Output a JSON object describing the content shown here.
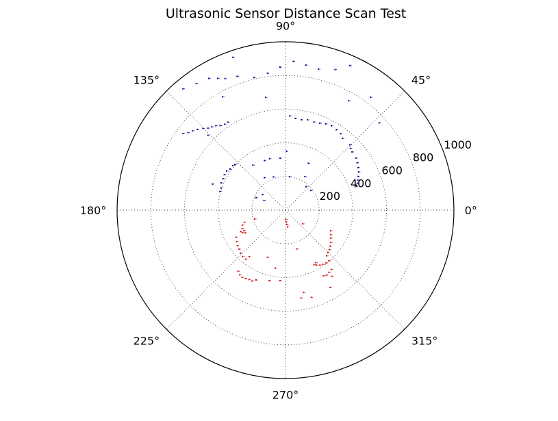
{
  "chart_data": {
    "type": "scatter",
    "projection": "polar",
    "title": "Ultrasonic Sensor Distance Scan Test",
    "theta_ticks": [
      "0°",
      "45°",
      "90°",
      "135°",
      "180°",
      "225°",
      "270°",
      "315°"
    ],
    "theta_tick_values_deg": [
      0,
      45,
      90,
      135,
      180,
      225,
      270,
      315
    ],
    "r_ticks": [
      "200",
      "400",
      "600",
      "800",
      "1000"
    ],
    "r_tick_values": [
      200,
      400,
      600,
      800,
      1000
    ],
    "rlim": [
      0,
      1000
    ],
    "grid": true,
    "series": [
      {
        "color": "#00008b",
        "points": [
          [
            130.2,
            943
          ],
          [
            125.2,
            920
          ],
          [
            120.2,
            905
          ],
          [
            117.2,
            880
          ],
          [
            114.7,
            860
          ],
          [
            109.9,
            845
          ],
          [
            103.4,
            810
          ],
          [
            97.5,
            820
          ],
          [
            92.2,
            850
          ],
          [
            87.0,
            885
          ],
          [
            82.0,
            870
          ],
          [
            76.8,
            860
          ],
          [
            70.6,
            885
          ],
          [
            143.2,
            760
          ],
          [
            141.5,
            740
          ],
          [
            139.5,
            725
          ],
          [
            137.5,
            710
          ],
          [
            135.3,
            690
          ],
          [
            133.4,
            670
          ],
          [
            131.5,
            660
          ],
          [
            129.5,
            650
          ],
          [
            127.7,
            635
          ],
          [
            125.3,
            625
          ],
          [
            123.2,
            625
          ],
          [
            87.4,
            560
          ],
          [
            83.9,
            548
          ],
          [
            80.0,
            545
          ],
          [
            76.3,
            552
          ],
          [
            72.1,
            550
          ],
          [
            68.5,
            555
          ],
          [
            65.0,
            565
          ],
          [
            61.5,
            570
          ],
          [
            57.7,
            565
          ],
          [
            54.2,
            560
          ],
          [
            51.6,
            545
          ],
          [
            45.4,
            545
          ],
          [
            43.6,
            532
          ],
          [
            41.2,
            525
          ],
          [
            36.5,
            520
          ],
          [
            33.5,
            510
          ],
          [
            30.4,
            500
          ],
          [
            27.6,
            490
          ],
          [
            24.9,
            475
          ],
          [
            22.5,
            465
          ],
          [
            20.5,
            455
          ],
          [
            18.7,
            445
          ],
          [
            164.1,
            405
          ],
          [
            161.0,
            405
          ],
          [
            157.0,
            415
          ],
          [
            153.3,
            415
          ],
          [
            149.9,
            420
          ],
          [
            146.4,
            420
          ],
          [
            143.5,
            410
          ],
          [
            139.8,
            410
          ],
          [
            138.0,
            405
          ],
          [
            89.0,
            350
          ],
          [
            96.0,
            310
          ],
          [
            113.0,
            320
          ],
          [
            107.2,
            320
          ],
          [
            64.0,
            310
          ],
          [
            110.0,
            210
          ],
          [
            123.0,
            230
          ],
          [
            146.0,
            165
          ],
          [
            156.0,
            140
          ],
          [
            157.0,
            190
          ],
          [
            83.0,
            200
          ],
          [
            60.0,
            230
          ],
          [
            49.0,
            185
          ],
          [
            38.0,
            190
          ],
          [
            136.0,
            640
          ],
          [
            100.0,
            680
          ],
          [
            60.0,
            750
          ],
          [
            43.0,
            760
          ],
          [
            53.0,
            840
          ],
          [
            66.0,
            940
          ],
          [
            119.0,
            770
          ],
          [
            109.0,
            960
          ],
          [
            62.0,
            1000
          ],
          [
            160.3,
            460
          ],
          [
            126.0,
            330
          ]
        ]
      },
      {
        "color": "#d40000",
        "points": [
          [
            277.0,
            100
          ],
          [
            275.4,
            85
          ],
          [
            273.2,
            70
          ],
          [
            271.6,
            55
          ],
          [
            196.4,
            255
          ],
          [
            199.2,
            270
          ],
          [
            203.0,
            280
          ],
          [
            206.4,
            275
          ],
          [
            209.4,
            275
          ],
          [
            207.5,
            290
          ],
          [
            205.5,
            295
          ],
          [
            208.7,
            335
          ],
          [
            212.8,
            345
          ],
          [
            216.5,
            355
          ],
          [
            220.0,
            360
          ],
          [
            223.7,
            370
          ],
          [
            227.3,
            375
          ],
          [
            230.9,
            375
          ],
          [
            232.1,
            460
          ],
          [
            234.7,
            470
          ],
          [
            237.1,
            475
          ],
          [
            239.7,
            470
          ],
          [
            242.3,
            465
          ],
          [
            244.7,
            465
          ],
          [
            247.1,
            450
          ],
          [
            335.4,
            295
          ],
          [
            331.5,
            305
          ],
          [
            328.2,
            315
          ],
          [
            324.5,
            330
          ],
          [
            321.1,
            340
          ],
          [
            317.9,
            350
          ],
          [
            314.9,
            355
          ],
          [
            312.0,
            365
          ],
          [
            310.6,
            395
          ],
          [
            307.5,
            395
          ],
          [
            304.5,
            390
          ],
          [
            302.0,
            385
          ],
          [
            299.4,
            375
          ],
          [
            297.6,
            365
          ],
          [
            307.7,
            445
          ],
          [
            304.9,
            450
          ],
          [
            302.1,
            455
          ],
          [
            300.0,
            450
          ],
          [
            286.4,
            240
          ],
          [
            265.5,
            420
          ],
          [
            257.0,
            430
          ],
          [
            282.4,
            500
          ],
          [
            280.0,
            530
          ],
          [
            286.5,
            540
          ],
          [
            300.0,
            360
          ],
          [
            321.5,
            130
          ],
          [
            260.0,
            350
          ],
          [
            249.0,
            300
          ],
          [
            232.0,
            350
          ],
          [
            196.0,
            190
          ],
          [
            305.0,
            480
          ],
          [
            300.0,
            530
          ]
        ]
      }
    ]
  }
}
